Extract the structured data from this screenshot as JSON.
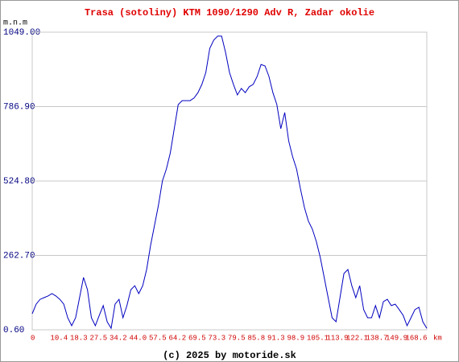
{
  "chart_data": {
    "type": "line",
    "title": "Trasa (sotoliny) KTM 1090/1290 Adv R, Zadar okolie",
    "y_label": "m.n.m",
    "x_label": "km",
    "footer": "(c) 2025 by motoride.sk",
    "categories": [
      "0",
      null,
      null,
      null,
      null,
      "10.4",
      null,
      null,
      null,
      null,
      "18.3",
      null,
      null,
      null,
      null,
      "27.5",
      null,
      null,
      null,
      null,
      "34.2",
      null,
      null,
      null,
      null,
      "44.0",
      null,
      null,
      null,
      null,
      "57.5",
      null,
      null,
      null,
      null,
      "64.2",
      null,
      null,
      null,
      null,
      "69.5",
      null,
      null,
      null,
      null,
      "73.3",
      null,
      null,
      null,
      null,
      "79.5",
      null,
      null,
      null,
      null,
      "85.8",
      null,
      null,
      null,
      null,
      "91.3",
      null,
      null,
      null,
      null,
      "98.9",
      null,
      null,
      null,
      null,
      "105.1",
      null,
      null,
      null,
      null,
      "113.9",
      null,
      null,
      null,
      null,
      "122.1",
      null,
      null,
      null,
      null,
      "138.7",
      null,
      null,
      null,
      null,
      "149.9",
      null,
      null,
      null,
      null,
      "168.6",
      null,
      null,
      null,
      null,
      null
    ],
    "series": [
      {
        "name": "elevation",
        "color": "#0000c0",
        "values": [
          57,
          91,
          108,
          114,
          120,
          128,
          120,
          108,
          91,
          43,
          15,
          43,
          114,
          185,
          142,
          43,
          15,
          52,
          86,
          29,
          6,
          91,
          108,
          43,
          86,
          142,
          156,
          128,
          156,
          213,
          298,
          369,
          440,
          525,
          567,
          624,
          709,
          794,
          808,
          808,
          808,
          817,
          836,
          865,
          907,
          992,
          1021,
          1035,
          1035,
          978,
          907,
          865,
          828,
          851,
          836,
          857,
          865,
          893,
          935,
          930,
          893,
          836,
          794,
          709,
          766,
          666,
          610,
          567,
          496,
          431,
          383,
          355,
          312,
          256,
          185,
          114,
          43,
          29,
          114,
          199,
          213,
          156,
          114,
          156,
          72,
          43,
          43,
          86,
          43,
          100,
          108,
          86,
          91,
          72,
          52,
          15,
          43,
          72,
          80,
          29,
          6
        ]
      }
    ],
    "ylim": [
      0.6,
      1049
    ],
    "yticks": [
      {
        "value": 0.6,
        "label": "0.60"
      },
      {
        "value": 262.7,
        "label": "262.70"
      },
      {
        "value": 524.8,
        "label": "524.80"
      },
      {
        "value": 786.9,
        "label": "786.90"
      },
      {
        "value": 1049,
        "label": "1049.00"
      }
    ],
    "grid": true
  }
}
